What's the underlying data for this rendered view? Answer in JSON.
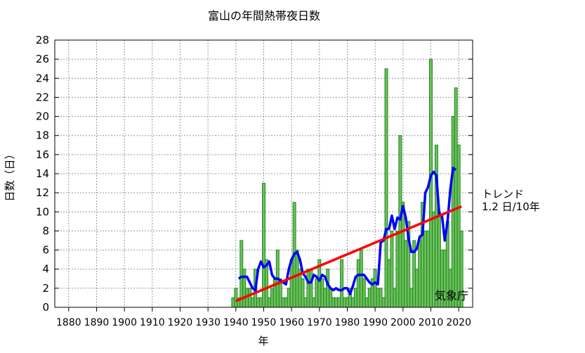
{
  "chart_data": {
    "type": "bar",
    "title": "富山の年間熱帯夜日数",
    "xlabel": "年",
    "ylabel": "日数（日）",
    "xlim": [
      1875,
      2025
    ],
    "ylim": [
      0,
      28
    ],
    "x_ticks": [
      1880,
      1890,
      1900,
      1910,
      1920,
      1930,
      1940,
      1950,
      1960,
      1970,
      1980,
      1990,
      2000,
      2010,
      2020
    ],
    "y_ticks": [
      0,
      2,
      4,
      6,
      8,
      10,
      12,
      14,
      16,
      18,
      20,
      22,
      24,
      26,
      28
    ],
    "grid": true,
    "years": [
      1939,
      1940,
      1941,
      1942,
      1943,
      1944,
      1945,
      1946,
      1947,
      1948,
      1949,
      1950,
      1951,
      1952,
      1953,
      1954,
      1955,
      1956,
      1957,
      1958,
      1959,
      1960,
      1961,
      1962,
      1963,
      1964,
      1965,
      1966,
      1967,
      1968,
      1969,
      1970,
      1971,
      1972,
      1973,
      1974,
      1975,
      1976,
      1977,
      1978,
      1979,
      1980,
      1981,
      1982,
      1983,
      1984,
      1985,
      1986,
      1987,
      1988,
      1989,
      1990,
      1991,
      1992,
      1993,
      1994,
      1995,
      1996,
      1997,
      1998,
      1999,
      2000,
      2001,
      2002,
      2003,
      2004,
      2005,
      2006,
      2007,
      2008,
      2009,
      2010,
      2011,
      2012,
      2013,
      2014,
      2015,
      2016,
      2017,
      2018,
      2019,
      2020,
      2021
    ],
    "values": [
      1,
      2,
      1,
      7,
      4,
      2,
      2,
      1,
      4,
      1,
      1,
      13,
      5,
      1,
      2,
      3,
      6,
      3,
      1,
      1,
      2,
      5,
      11,
      6,
      4,
      3,
      1,
      4,
      4,
      1,
      3,
      5,
      3,
      2,
      4,
      2,
      1,
      1,
      1,
      5,
      1,
      1,
      2,
      1,
      2,
      5,
      6,
      3,
      1,
      2,
      3,
      4,
      2,
      2,
      1,
      25,
      5,
      8,
      2,
      8,
      18,
      11,
      7,
      9,
      2,
      7,
      4,
      7,
      11,
      8,
      8,
      26,
      10,
      17,
      10,
      6,
      6,
      9,
      4,
      20,
      23,
      17,
      8
    ],
    "running_mean_window": 5,
    "trend": {
      "label": "トレンド",
      "value": "1.2 日/10年",
      "start_year": 1940,
      "end_year": 2021
    },
    "source": "気象庁",
    "colors": {
      "bar_fill": "#6cbf5c",
      "bar_stroke": "#1f8a1f",
      "running_mean": "#0000ff",
      "trend": "#ff0000"
    }
  }
}
